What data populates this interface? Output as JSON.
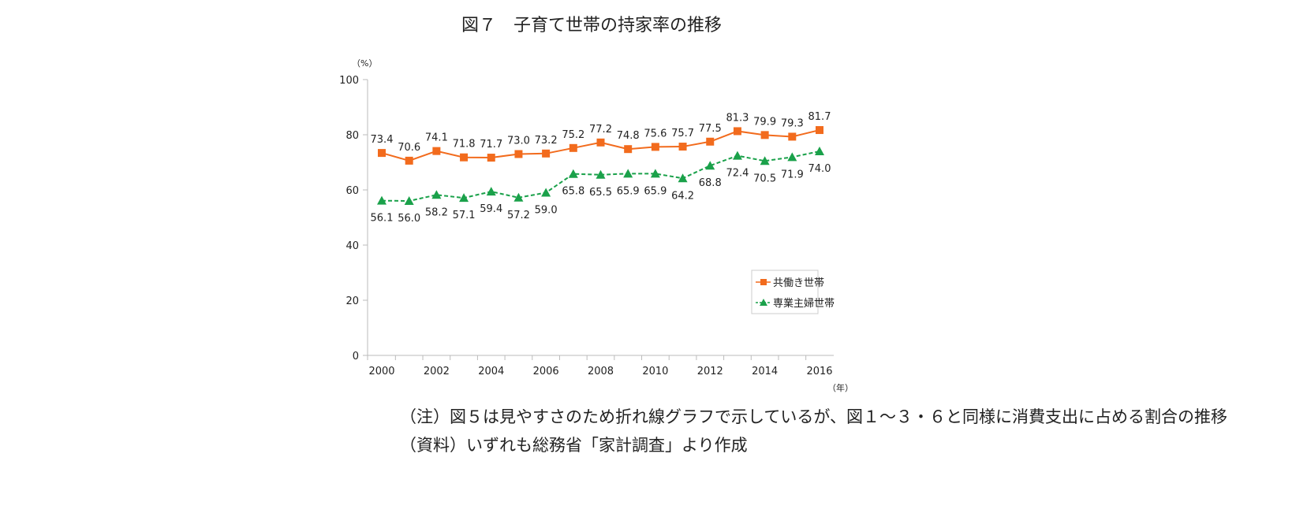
{
  "title": "図７　子育て世帯の持家率の推移",
  "chart_data": {
    "type": "line",
    "title": "図７　子育て世帯の持家率の推移",
    "ylabel": "（%）",
    "xlabel": "（年）",
    "x": [
      2000,
      2001,
      2002,
      2003,
      2004,
      2005,
      2006,
      2007,
      2008,
      2009,
      2010,
      2011,
      2012,
      2013,
      2014,
      2015,
      2016
    ],
    "xticks": [
      "2000",
      "2002",
      "2004",
      "2006",
      "2008",
      "2010",
      "2012",
      "2014",
      "2016"
    ],
    "yticks": [
      "0",
      "20",
      "40",
      "60",
      "80",
      "100"
    ],
    "ylim": [
      0,
      100
    ],
    "grid": false,
    "legend": "center-right",
    "series": [
      {
        "name": "共働き世帯",
        "color": "#f26b1d",
        "marker": "square",
        "dash": false,
        "values": [
          73.4,
          70.6,
          74.1,
          71.8,
          71.7,
          73.0,
          73.2,
          75.2,
          77.2,
          74.8,
          75.6,
          75.7,
          77.5,
          81.3,
          79.9,
          79.3,
          81.7
        ]
      },
      {
        "name": "専業主婦世帯",
        "color": "#1aa14a",
        "marker": "triangle",
        "dash": true,
        "values": [
          56.1,
          56.0,
          58.2,
          57.1,
          59.4,
          57.2,
          59.0,
          65.8,
          65.5,
          65.9,
          65.9,
          64.2,
          68.8,
          72.4,
          70.5,
          71.9,
          74.0
        ]
      }
    ]
  },
  "notes": [
    "（注）図５は見やすさのため折れ線グラフで示しているが、図１～３・６と同様に消費支出に占める割合の推移",
    "（資料）いずれも総務省「家計調査」より作成"
  ]
}
